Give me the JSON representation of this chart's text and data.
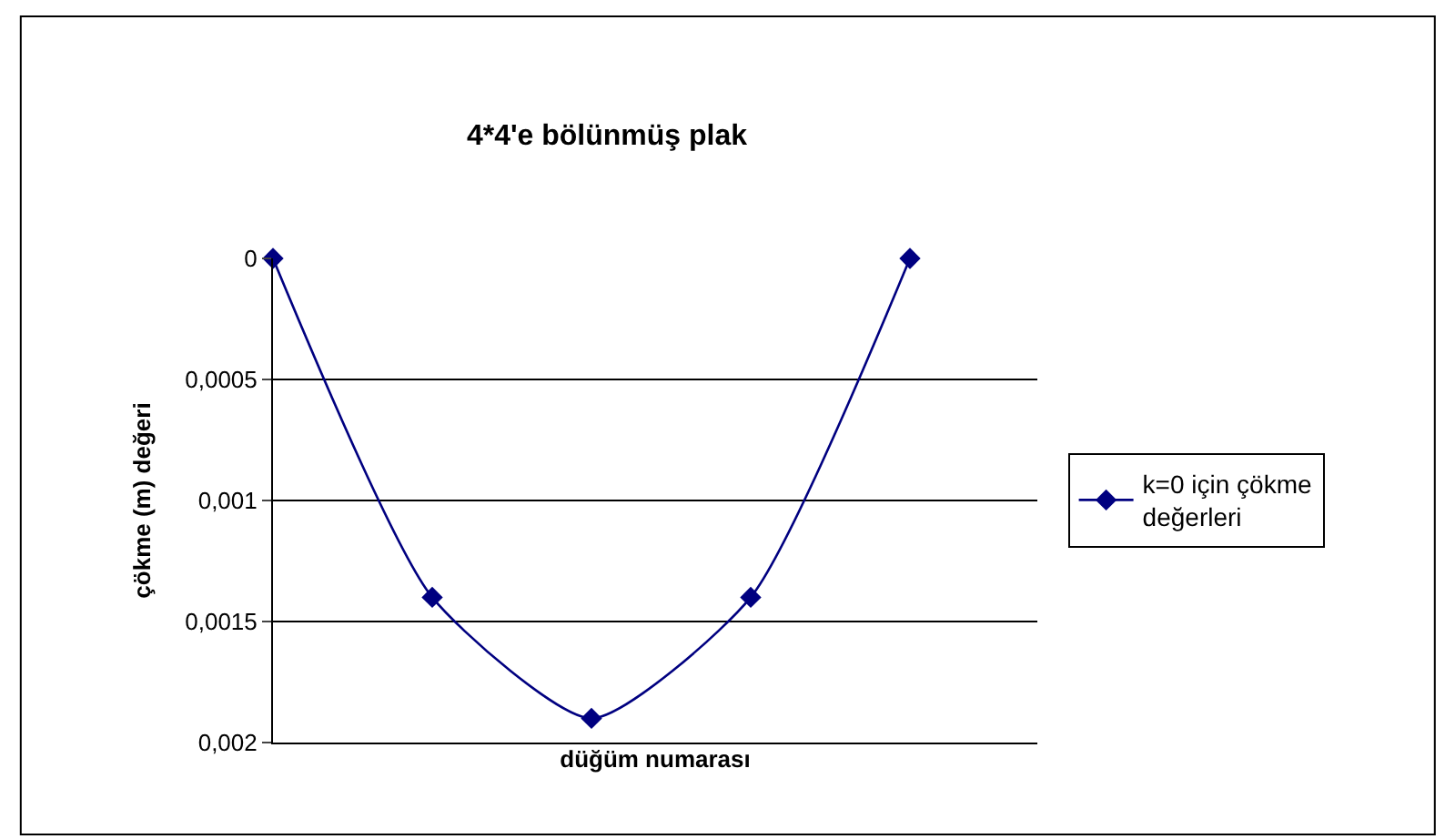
{
  "chart_data": {
    "type": "line",
    "title": "4*4'e bölünmüş plak",
    "xlabel": "düğüm numarası",
    "ylabel": "çökme (m) değeri",
    "categories": [
      null,
      null,
      null,
      null,
      null
    ],
    "series": [
      {
        "name": "k=0 için çökme değerleri",
        "color": "#000080",
        "values": [
          0,
          0.0014,
          0.0019,
          0.0014,
          0
        ]
      }
    ],
    "ylim": [
      0.002,
      0
    ],
    "yticks": [
      0,
      {
        "value": 0.0005,
        "label": "0,0005"
      },
      {
        "value": 0.001,
        "label": "0,001"
      },
      {
        "value": 0.0015,
        "label": "0,0015"
      },
      {
        "value": 0.002,
        "label": "0,002"
      }
    ],
    "grid": "y",
    "legend": "right",
    "marker": "diamond",
    "line_style": "solid",
    "tick_labels": "y"
  }
}
